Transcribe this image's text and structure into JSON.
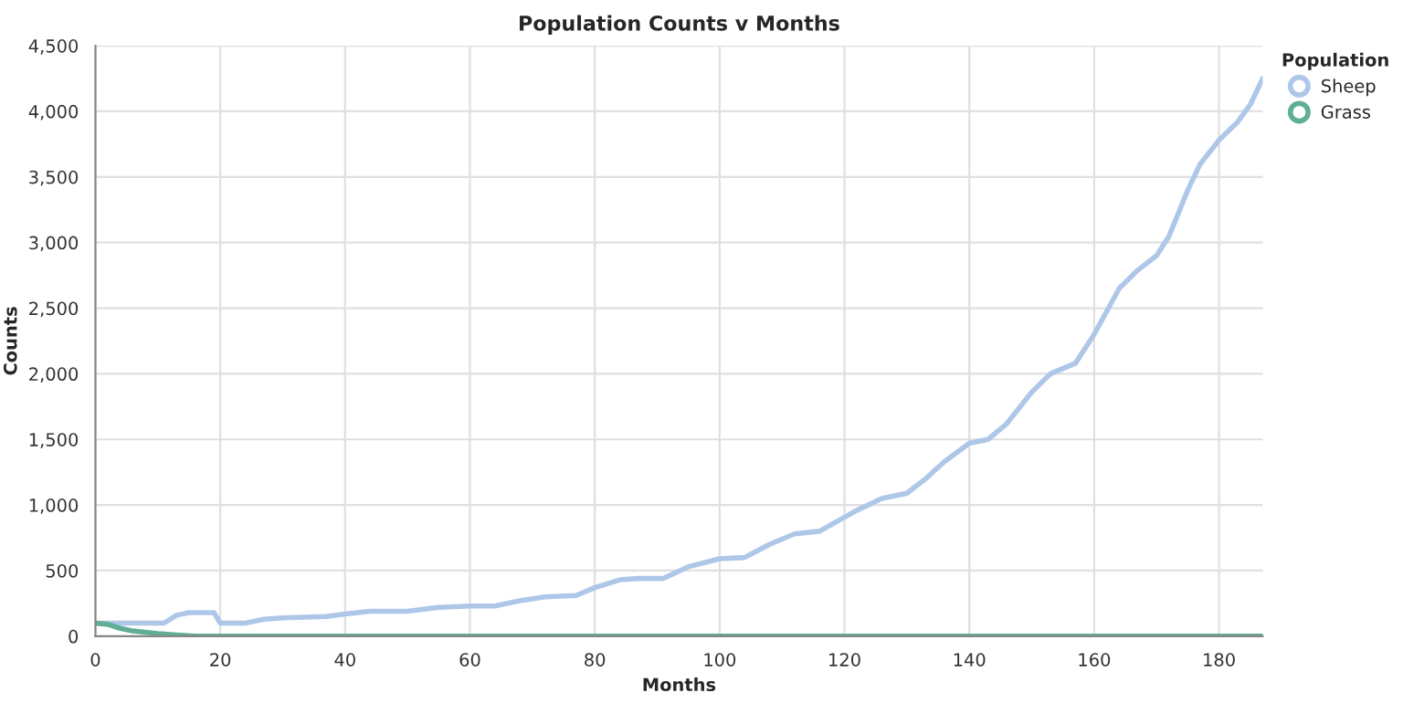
{
  "chart_data": {
    "type": "line",
    "title": "Population Counts v Months",
    "xlabel": "Months",
    "ylabel": "Counts",
    "legend_title": "Population",
    "xlim": [
      0,
      187
    ],
    "xticks": [
      0,
      20,
      40,
      60,
      80,
      100,
      120,
      140,
      160,
      180
    ],
    "ylim": [
      0,
      4500
    ],
    "yticks": [
      {
        "value": 0,
        "label": "0"
      },
      {
        "value": 500,
        "label": "500"
      },
      {
        "value": 1000,
        "label": "1,000"
      },
      {
        "value": 1500,
        "label": "1,500"
      },
      {
        "value": 2000,
        "label": "2,000"
      },
      {
        "value": 2500,
        "label": "2,500"
      },
      {
        "value": 3000,
        "label": "3,000"
      },
      {
        "value": 3500,
        "label": "3,500"
      },
      {
        "value": 4000,
        "label": "4,000"
      },
      {
        "value": 4500,
        "label": "4,500"
      }
    ],
    "grid": true,
    "legend": "top right",
    "series": [
      {
        "name": "Sheep",
        "color": "#aec7e8",
        "x": [
          0,
          11,
          13,
          15,
          19,
          20,
          24,
          27,
          30,
          37,
          40,
          44,
          50,
          55,
          60,
          64,
          68,
          72,
          77,
          80,
          84,
          87,
          91,
          95,
          100,
          104,
          108,
          112,
          116,
          119,
          122,
          126,
          130,
          133,
          136,
          140,
          143,
          146,
          150,
          153,
          157,
          160,
          164,
          167,
          170,
          172,
          175,
          177,
          180,
          183,
          185,
          187
        ],
        "values": [
          100,
          100,
          160,
          180,
          180,
          100,
          100,
          130,
          140,
          150,
          170,
          190,
          190,
          220,
          230,
          230,
          270,
          300,
          310,
          370,
          430,
          440,
          440,
          530,
          590,
          600,
          700,
          780,
          800,
          880,
          960,
          1050,
          1090,
          1200,
          1330,
          1470,
          1500,
          1620,
          1860,
          2000,
          2080,
          2300,
          2650,
          2790,
          2900,
          3050,
          3400,
          3600,
          3780,
          3920,
          4050,
          4250
        ]
      },
      {
        "name": "Grass",
        "color": "#5fae95",
        "x": [
          0,
          2,
          4,
          6,
          8,
          10,
          13,
          16,
          20,
          30,
          187
        ],
        "values": [
          100,
          90,
          60,
          40,
          30,
          20,
          10,
          0,
          0,
          0,
          0
        ]
      }
    ]
  }
}
